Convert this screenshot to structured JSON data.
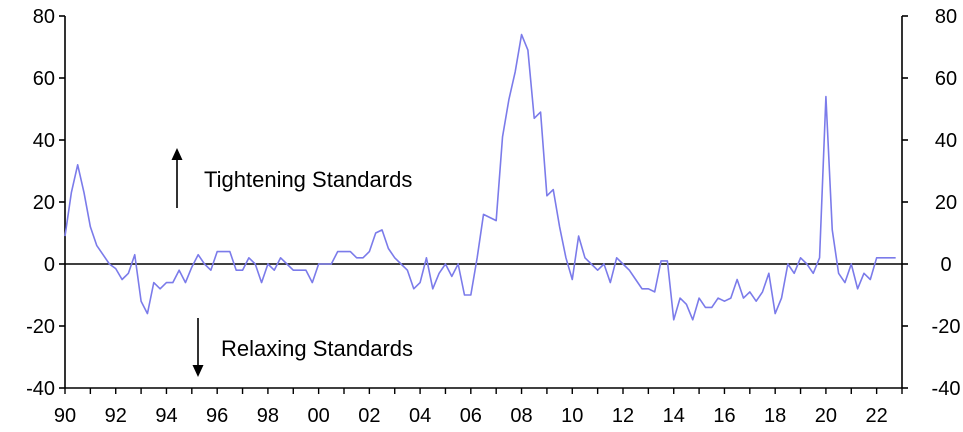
{
  "chart_data": {
    "type": "line",
    "title": "",
    "xlabel": "",
    "ylabel": "",
    "ylim": [
      -40,
      80
    ],
    "xlim": [
      1990,
      2023
    ],
    "y_ticks_left": [
      "80",
      "60",
      "40",
      "20",
      "0",
      "-20",
      "-40"
    ],
    "y_ticks_right": [
      "80",
      "60",
      "40",
      "20",
      "0",
      "-20",
      "-40"
    ],
    "x_ticks": [
      "90",
      "92",
      "94",
      "96",
      "98",
      "00",
      "02",
      "04",
      "06",
      "08",
      "10",
      "12",
      "14",
      "16",
      "18",
      "20",
      "22"
    ],
    "grid": false,
    "zero_line": true,
    "line_color": "#7b7bea",
    "annotations": {
      "tightening": "Tightening Standards",
      "relaxing": "Relaxing Standards"
    },
    "series": [
      {
        "x": [
          1990.0,
          1990.25,
          1990.5,
          1990.75,
          1991.0,
          1991.25,
          1991.5,
          1991.75,
          1992.0,
          1992.25,
          1992.5,
          1992.75,
          1993.0,
          1993.25,
          1993.5,
          1993.75,
          1994.0,
          1994.25,
          1994.5,
          1994.75,
          1995.0,
          1995.25,
          1995.5,
          1995.75,
          1996.0,
          1996.25,
          1996.5,
          1996.75,
          1997.0,
          1997.25,
          1997.5,
          1997.75,
          1998.0,
          1998.25,
          1998.5,
          1998.75,
          1999.0,
          1999.25,
          1999.5,
          1999.75,
          2000.0,
          2000.25,
          2000.5,
          2000.75,
          2001.0,
          2001.25,
          2001.5,
          2001.75,
          2002.0,
          2002.25,
          2002.5,
          2002.75,
          2003.0,
          2003.25,
          2003.5,
          2003.75,
          2004.0,
          2004.25,
          2004.5,
          2004.75,
          2005.0,
          2005.25,
          2005.5,
          2005.75,
          2006.0,
          2006.25,
          2006.5,
          2006.75,
          2007.0,
          2007.25,
          2007.5,
          2007.75,
          2008.0,
          2008.25,
          2008.5,
          2008.75,
          2009.0,
          2009.25,
          2009.5,
          2009.75,
          2010.0,
          2010.25,
          2010.5,
          2010.75,
          2011.0,
          2011.25,
          2011.5,
          2011.75,
          2012.0,
          2012.25,
          2012.5,
          2012.75,
          2013.0,
          2013.25,
          2013.5,
          2013.75,
          2014.0,
          2014.25,
          2014.5,
          2014.75,
          2015.0,
          2015.25,
          2015.5,
          2015.75,
          2016.0,
          2016.25,
          2016.5,
          2016.75,
          2017.0,
          2017.25,
          2017.5,
          2017.75,
          2018.0,
          2018.25,
          2018.5,
          2018.75,
          2019.0,
          2019.25,
          2019.5,
          2019.75,
          2020.0,
          2020.25,
          2020.5,
          2020.75,
          2021.0,
          2021.25,
          2021.5,
          2021.75,
          2022.0,
          2022.25,
          2022.5,
          2022.75
        ],
        "values": [
          9,
          23,
          32,
          23,
          12,
          6,
          3,
          0,
          -1.5,
          -5,
          -3,
          3,
          -12,
          -16,
          -6,
          -8,
          -6,
          -6,
          -2,
          -6,
          -1,
          3,
          0,
          -2,
          4,
          4,
          4,
          -2,
          -2,
          2,
          0,
          -6,
          0,
          -2,
          2,
          0,
          -2,
          -2,
          -2,
          -6,
          0,
          0,
          0,
          4,
          4,
          4,
          2,
          2,
          4,
          10,
          11,
          5,
          2,
          0,
          -2,
          -8,
          -6,
          2,
          -8,
          -3,
          0,
          -4,
          0,
          -10,
          -10,
          2,
          16,
          15,
          14,
          41,
          53,
          62,
          74,
          69,
          47,
          49,
          22,
          24,
          12,
          2,
          -5,
          9,
          2,
          0,
          -2,
          0,
          -6,
          2,
          0,
          -2,
          -5,
          -8,
          -8,
          -9,
          1,
          1,
          -18,
          -11,
          -13,
          -18,
          -11,
          -14,
          -14,
          -11,
          -12,
          -11,
          -5,
          -11,
          -9,
          -12,
          -9,
          -3,
          -16,
          -11,
          0,
          -3,
          2,
          0,
          -3,
          2,
          54,
          11,
          -3,
          -6,
          0,
          -8,
          -3,
          -5,
          2,
          2,
          2,
          2
        ]
      }
    ]
  }
}
